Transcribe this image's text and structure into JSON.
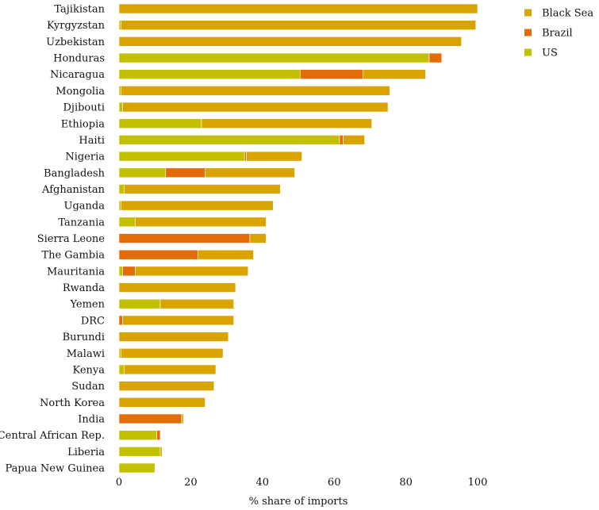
{
  "chart_data": {
    "type": "bar",
    "orientation": "horizontal",
    "stacked": true,
    "title": "",
    "xlabel": "% share of imports",
    "ylabel": "",
    "xlim": [
      0,
      100
    ],
    "xticks": [
      0,
      20,
      40,
      60,
      80,
      100
    ],
    "grid": false,
    "legend_position": "top-right",
    "categories": [
      "Tajikistan",
      "Kyrgyzstan",
      "Uzbekistan",
      "Honduras",
      "Nicaragua",
      "Mongolia",
      "Djibouti",
      "Ethiopia",
      "Haiti",
      "Nigeria",
      "Bangladesh",
      "Afghanistan",
      "Uganda",
      "Tanzania",
      "Sierra Leone",
      "The Gambia",
      "Mauritania",
      "Rwanda",
      "Yemen",
      "DRC",
      "Burundi",
      "Malawi",
      "Kenya",
      "Sudan",
      "North Korea",
      "India",
      "Central African Rep.",
      "Liberia",
      "Papua New Guinea"
    ],
    "series": [
      {
        "name": "US",
        "color": "#c2c000",
        "values": [
          0,
          0.5,
          0,
          86.5,
          50.5,
          0.5,
          1,
          23,
          61.5,
          35,
          13,
          1.5,
          0.5,
          4.5,
          0,
          0,
          1,
          0,
          11.5,
          0,
          0,
          0.5,
          1.5,
          0,
          0,
          0,
          10.5,
          11.5,
          10
        ]
      },
      {
        "name": "Brazil",
        "color": "#e36c0a",
        "values": [
          0,
          0,
          0,
          3.5,
          17.5,
          0,
          0,
          0,
          1,
          0.5,
          11,
          0,
          0,
          0,
          36.5,
          22,
          3.5,
          0,
          0,
          1,
          0,
          0,
          0,
          0,
          0,
          17.5,
          1,
          0,
          0
        ]
      },
      {
        "name": "Black Sea",
        "color": "#d9a400",
        "values": [
          100,
          99,
          95.5,
          0,
          17.5,
          75,
          74,
          47.5,
          6,
          15.5,
          25,
          43.5,
          42.5,
          36.5,
          4.5,
          15.5,
          31.5,
          32.5,
          20.5,
          31,
          30.5,
          28.5,
          25.5,
          26.5,
          24,
          0.5,
          0,
          0.5,
          0
        ]
      }
    ],
    "legend_order": [
      "Black Sea",
      "Brazil",
      "US"
    ]
  }
}
